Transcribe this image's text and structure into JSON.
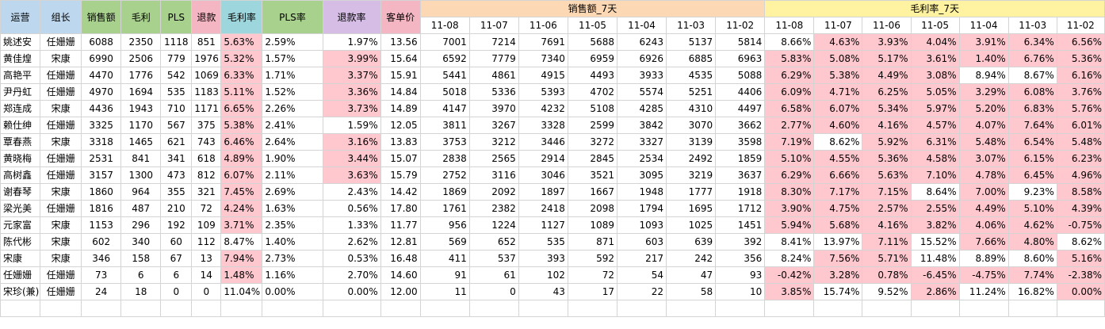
{
  "headers": {
    "op": "运营",
    "lead": "组长",
    "sales": "销售额",
    "profit": "毛利",
    "pls": "PLS",
    "refund": "退款",
    "margin": "毛利率",
    "pls_rate": "PLS率",
    "refund_rate": "退款率",
    "aov": "客单价",
    "sales7": "销售额_7天",
    "margin7": "毛利率_7天"
  },
  "dates": [
    "11-08",
    "11-07",
    "11-06",
    "11-05",
    "11-04",
    "11-03",
    "11-02"
  ],
  "colors": {
    "highlight": "#ffc7ce",
    "blue": "#bdd7ee",
    "green": "#a9d18e",
    "pink": "#f4b6c2",
    "teal": "#9dd6dc",
    "lavender": "#d5bde6",
    "peach": "#fdd8b5",
    "yellow": "#fff2a0"
  },
  "rows": [
    {
      "op": "姚述安",
      "lead": "任姗姗",
      "sales": "6088",
      "profit": "2350",
      "pls": "1118",
      "refund": "851",
      "margin": "5.63%",
      "pls_rate": "2.59%",
      "refund_rate": "1.97%",
      "aov": "13.56",
      "s7": [
        "7001",
        "7214",
        "7691",
        "5688",
        "6243",
        "5137",
        "5814"
      ],
      "m7": [
        "8.66%",
        "4.63%",
        "3.93%",
        "4.04%",
        "3.91%",
        "6.34%",
        "6.56%"
      ],
      "hl": {
        "margin": true,
        "refund_rate": false,
        "m7": [
          0,
          1,
          1,
          1,
          1,
          1,
          1
        ]
      }
    },
    {
      "op": "黄佳煌",
      "lead": "宋康",
      "sales": "6990",
      "profit": "2506",
      "pls": "779",
      "refund": "1976",
      "margin": "5.32%",
      "pls_rate": "1.57%",
      "refund_rate": "3.99%",
      "aov": "15.64",
      "s7": [
        "6592",
        "7779",
        "7340",
        "6959",
        "6926",
        "6885",
        "6963"
      ],
      "m7": [
        "5.83%",
        "5.08%",
        "5.17%",
        "3.61%",
        "1.40%",
        "6.76%",
        "5.36%"
      ],
      "hl": {
        "margin": true,
        "refund_rate": true,
        "m7": [
          1,
          1,
          1,
          1,
          1,
          1,
          1
        ]
      }
    },
    {
      "op": "高艳平",
      "lead": "任姗姗",
      "sales": "4470",
      "profit": "1776",
      "pls": "542",
      "refund": "1069",
      "margin": "6.33%",
      "pls_rate": "1.71%",
      "refund_rate": "3.37%",
      "aov": "15.91",
      "s7": [
        "5441",
        "4861",
        "4915",
        "4493",
        "3933",
        "4535",
        "5088"
      ],
      "m7": [
        "6.29%",
        "5.38%",
        "4.49%",
        "3.08%",
        "8.94%",
        "8.67%",
        "6.16%"
      ],
      "hl": {
        "margin": true,
        "refund_rate": true,
        "m7": [
          1,
          1,
          1,
          1,
          0,
          0,
          1
        ]
      }
    },
    {
      "op": "尹丹虹",
      "lead": "任姗姗",
      "sales": "4970",
      "profit": "1694",
      "pls": "535",
      "refund": "1183",
      "margin": "5.11%",
      "pls_rate": "1.52%",
      "refund_rate": "3.36%",
      "aov": "14.84",
      "s7": [
        "5018",
        "5336",
        "5393",
        "4702",
        "5574",
        "5251",
        "4406"
      ],
      "m7": [
        "6.09%",
        "4.71%",
        "6.25%",
        "5.05%",
        "3.29%",
        "6.08%",
        "3.76%"
      ],
      "hl": {
        "margin": true,
        "refund_rate": true,
        "m7": [
          1,
          1,
          1,
          1,
          1,
          1,
          1
        ]
      }
    },
    {
      "op": "郑连成",
      "lead": "宋康",
      "sales": "4436",
      "profit": "1943",
      "pls": "710",
      "refund": "1171",
      "margin": "6.65%",
      "pls_rate": "2.26%",
      "refund_rate": "3.73%",
      "aov": "14.89",
      "s7": [
        "4147",
        "3970",
        "4232",
        "5108",
        "4285",
        "4310",
        "4497"
      ],
      "m7": [
        "6.58%",
        "6.07%",
        "5.34%",
        "5.97%",
        "5.20%",
        "6.83%",
        "5.76%"
      ],
      "hl": {
        "margin": true,
        "refund_rate": true,
        "m7": [
          1,
          1,
          1,
          1,
          1,
          1,
          1
        ]
      }
    },
    {
      "op": "赖仕绅",
      "lead": "任姗姗",
      "sales": "3325",
      "profit": "1170",
      "pls": "567",
      "refund": "375",
      "margin": "5.38%",
      "pls_rate": "2.41%",
      "refund_rate": "1.59%",
      "aov": "12.05",
      "s7": [
        "3811",
        "3267",
        "3328",
        "2599",
        "3842",
        "3070",
        "3662"
      ],
      "m7": [
        "2.77%",
        "4.60%",
        "4.16%",
        "4.57%",
        "4.07%",
        "7.64%",
        "6.01%"
      ],
      "hl": {
        "margin": true,
        "refund_rate": false,
        "m7": [
          1,
          1,
          1,
          1,
          1,
          1,
          1
        ]
      }
    },
    {
      "op": "覃春燕",
      "lead": "宋康",
      "sales": "3318",
      "profit": "1465",
      "pls": "621",
      "refund": "743",
      "margin": "6.46%",
      "pls_rate": "2.64%",
      "refund_rate": "3.16%",
      "aov": "13.83",
      "s7": [
        "3753",
        "3212",
        "3446",
        "3272",
        "3327",
        "3139",
        "3598"
      ],
      "m7": [
        "7.19%",
        "8.62%",
        "5.92%",
        "6.31%",
        "5.48%",
        "6.54%",
        "5.48%"
      ],
      "hl": {
        "margin": true,
        "refund_rate": true,
        "m7": [
          1,
          0,
          1,
          1,
          1,
          1,
          1
        ]
      }
    },
    {
      "op": "黄晓梅",
      "lead": "任姗姗",
      "sales": "2531",
      "profit": "841",
      "pls": "341",
      "refund": "618",
      "margin": "4.89%",
      "pls_rate": "1.90%",
      "refund_rate": "3.44%",
      "aov": "15.07",
      "s7": [
        "2838",
        "2565",
        "2914",
        "2845",
        "2534",
        "2492",
        "1859"
      ],
      "m7": [
        "5.10%",
        "4.55%",
        "5.36%",
        "4.58%",
        "3.07%",
        "6.15%",
        "6.23%"
      ],
      "hl": {
        "margin": true,
        "refund_rate": true,
        "m7": [
          1,
          1,
          1,
          1,
          1,
          1,
          1
        ]
      }
    },
    {
      "op": "高树鑫",
      "lead": "任姗姗",
      "sales": "3157",
      "profit": "1300",
      "pls": "473",
      "refund": "812",
      "margin": "6.07%",
      "pls_rate": "2.11%",
      "refund_rate": "3.63%",
      "aov": "15.79",
      "s7": [
        "2752",
        "3116",
        "3046",
        "3521",
        "3095",
        "3219",
        "3637"
      ],
      "m7": [
        "6.29%",
        "6.66%",
        "5.63%",
        "7.10%",
        "4.78%",
        "6.45%",
        "4.96%"
      ],
      "hl": {
        "margin": true,
        "refund_rate": true,
        "m7": [
          1,
          1,
          1,
          1,
          1,
          1,
          1
        ]
      }
    },
    {
      "op": "谢春琴",
      "lead": "宋康",
      "sales": "1860",
      "profit": "964",
      "pls": "355",
      "refund": "321",
      "margin": "7.45%",
      "pls_rate": "2.69%",
      "refund_rate": "2.43%",
      "aov": "14.42",
      "s7": [
        "1869",
        "2092",
        "1897",
        "1667",
        "1948",
        "1777",
        "1918"
      ],
      "m7": [
        "8.30%",
        "7.17%",
        "7.15%",
        "8.64%",
        "7.00%",
        "9.23%",
        "8.58%"
      ],
      "hl": {
        "margin": true,
        "refund_rate": false,
        "m7": [
          1,
          1,
          1,
          0,
          1,
          0,
          1
        ]
      }
    },
    {
      "op": "梁光美",
      "lead": "任姗姗",
      "sales": "1816",
      "profit": "487",
      "pls": "210",
      "refund": "72",
      "margin": "4.24%",
      "pls_rate": "1.63%",
      "refund_rate": "0.56%",
      "aov": "17.80",
      "s7": [
        "1761",
        "2382",
        "2418",
        "2098",
        "1794",
        "1695",
        "1712"
      ],
      "m7": [
        "3.90%",
        "4.75%",
        "2.57%",
        "2.55%",
        "4.49%",
        "5.10%",
        "4.39%"
      ],
      "hl": {
        "margin": true,
        "refund_rate": false,
        "m7": [
          1,
          1,
          1,
          1,
          1,
          1,
          1
        ]
      }
    },
    {
      "op": "元家富",
      "lead": "宋康",
      "sales": "1153",
      "profit": "296",
      "pls": "192",
      "refund": "109",
      "margin": "3.71%",
      "pls_rate": "2.35%",
      "refund_rate": "1.33%",
      "aov": "11.77",
      "s7": [
        "956",
        "1224",
        "1127",
        "1089",
        "1093",
        "1025",
        "1451"
      ],
      "m7": [
        "5.94%",
        "5.68%",
        "4.16%",
        "3.82%",
        "4.06%",
        "4.62%",
        "-0.75%"
      ],
      "hl": {
        "margin": true,
        "refund_rate": false,
        "m7": [
          1,
          1,
          1,
          1,
          1,
          1,
          1
        ]
      }
    },
    {
      "op": "陈代彬",
      "lead": "宋康",
      "sales": "602",
      "profit": "340",
      "pls": "60",
      "refund": "112",
      "margin": "8.47%",
      "pls_rate": "1.40%",
      "refund_rate": "2.62%",
      "aov": "12.81",
      "s7": [
        "569",
        "652",
        "535",
        "871",
        "603",
        "639",
        "392"
      ],
      "m7": [
        "8.41%",
        "13.97%",
        "7.11%",
        "15.52%",
        "7.66%",
        "4.80%",
        "8.62%"
      ],
      "hl": {
        "margin": false,
        "refund_rate": false,
        "m7": [
          0,
          0,
          1,
          0,
          1,
          1,
          0
        ]
      }
    },
    {
      "op": "宋康",
      "lead": "宋康",
      "sales": "346",
      "profit": "158",
      "pls": "67",
      "refund": "13",
      "margin": "7.94%",
      "pls_rate": "2.73%",
      "refund_rate": "0.53%",
      "aov": "16.48",
      "s7": [
        "411",
        "537",
        "393",
        "592",
        "217",
        "242",
        "356"
      ],
      "m7": [
        "8.24%",
        "7.56%",
        "5.71%",
        "11.48%",
        "8.89%",
        "8.60%",
        "5.16%"
      ],
      "hl": {
        "margin": true,
        "refund_rate": false,
        "m7": [
          0,
          1,
          1,
          0,
          0,
          0,
          1
        ]
      }
    },
    {
      "op": "任姗姗",
      "lead": "任姗姗",
      "sales": "73",
      "profit": "6",
      "pls": "6",
      "refund": "14",
      "margin": "1.48%",
      "pls_rate": "1.16%",
      "refund_rate": "2.70%",
      "aov": "14.60",
      "s7": [
        "91",
        "61",
        "102",
        "72",
        "54",
        "47",
        "93"
      ],
      "m7": [
        "-0.42%",
        "3.28%",
        "0.78%",
        "-6.45%",
        "-4.75%",
        "7.74%",
        "-2.38%"
      ],
      "hl": {
        "margin": true,
        "refund_rate": false,
        "m7": [
          1,
          1,
          1,
          1,
          1,
          1,
          1
        ]
      }
    },
    {
      "op": "宋珍(兼)",
      "lead": "任姗姗",
      "sales": "24",
      "profit": "18",
      "pls": "0",
      "refund": "0",
      "margin": "11.04%",
      "pls_rate": "0.00%",
      "refund_rate": "0.00%",
      "aov": "12.00",
      "s7": [
        "11",
        "0",
        "43",
        "17",
        "22",
        "58",
        "10"
      ],
      "m7": [
        "3.85%",
        "15.74%",
        "9.52%",
        "2.86%",
        "11.24%",
        "16.82%",
        "0.00%"
      ],
      "hl": {
        "margin": false,
        "refund_rate": false,
        "m7": [
          1,
          0,
          0,
          1,
          0,
          0,
          1
        ]
      }
    }
  ]
}
